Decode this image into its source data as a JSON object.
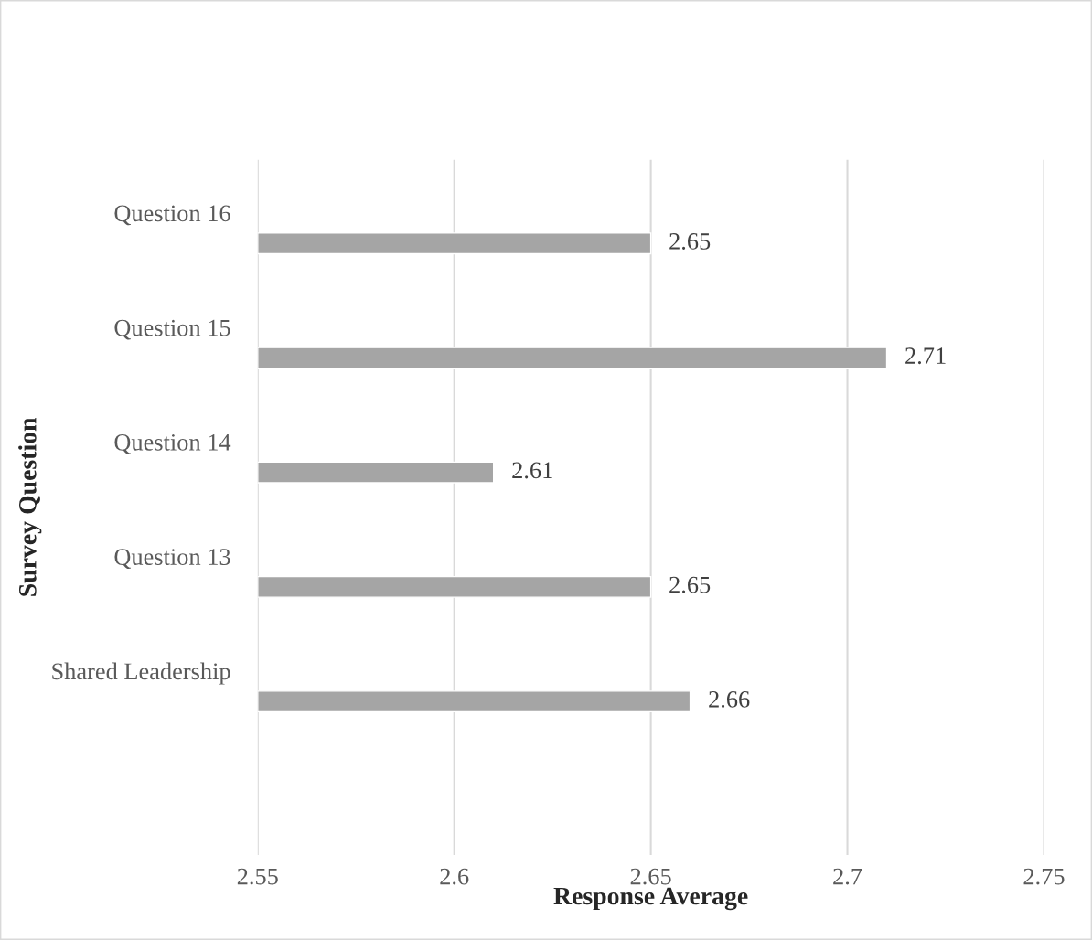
{
  "chart_data": {
    "type": "bar",
    "orientation": "horizontal",
    "xlabel": "Response Average",
    "ylabel": "Survey Question",
    "categories": [
      "Question 16",
      "Question 15",
      "Question 14",
      "Question 13",
      "Shared Leadership"
    ],
    "values": [
      2.65,
      2.71,
      2.61,
      2.65,
      2.66
    ],
    "color": "#a5a5a5",
    "xlim": [
      2.55,
      2.75
    ],
    "xticks": [
      2.55,
      2.6,
      2.65,
      2.7,
      2.75
    ],
    "grid": "x",
    "data_labels": true
  }
}
